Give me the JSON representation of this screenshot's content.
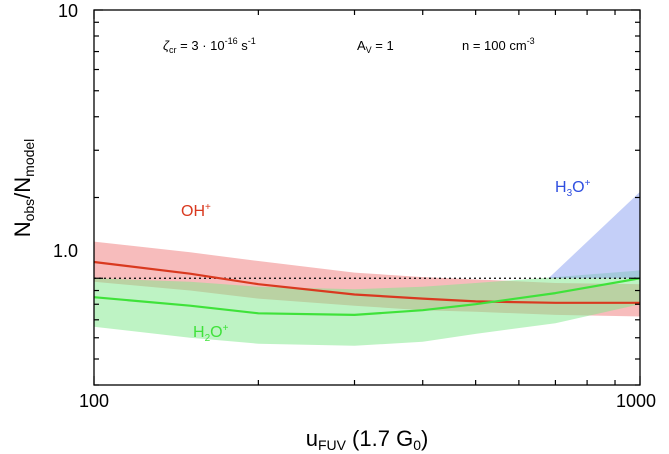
{
  "chart_data": {
    "type": "line",
    "xscale": "log",
    "yscale": "log",
    "xlim": [
      100,
      1000
    ],
    "ylim": [
      0.4,
      10
    ],
    "x_ticks": [
      {
        "value": 100,
        "label": "100"
      },
      {
        "value": 1000,
        "label": "1000"
      }
    ],
    "y_ticks": [
      {
        "value": 1.0,
        "label": "1.0"
      },
      {
        "value": 10,
        "label": "10"
      }
    ],
    "xlabel": {
      "main": "u",
      "sub": "FUV",
      "rest": " (1.7 G",
      "sub2": "0",
      "close": ")"
    },
    "ylabel": {
      "n1": "N",
      "s1": "obs",
      "slash": "/N",
      "s2": "model"
    },
    "reference_line": {
      "y": 1.0,
      "style": "dotted"
    },
    "annotations": {
      "zeta": {
        "sym": "ζ",
        "sub": "cr",
        "eq": " = 3 · 10",
        "sup": "-16",
        "unit": " s",
        "unitsup": "-1"
      },
      "av": {
        "main": "A",
        "sub": "V",
        "eq": " = 1"
      },
      "n": {
        "main": "n = 100 cm",
        "sup": "-3"
      }
    },
    "series": [
      {
        "name": "OH+",
        "label": {
          "main": "OH",
          "sup": "+"
        },
        "color": "#d9391f",
        "band_color": "#f07a7a",
        "x": [
          100,
          150,
          200,
          300,
          400,
          500,
          700,
          1000
        ],
        "y": [
          1.15,
          1.04,
          0.95,
          0.87,
          0.84,
          0.82,
          0.81,
          0.81
        ],
        "y_low": [
          0.97,
          0.9,
          0.84,
          0.79,
          0.76,
          0.75,
          0.73,
          0.72
        ],
        "y_high": [
          1.37,
          1.25,
          1.16,
          1.05,
          1.01,
          0.99,
          0.96,
          0.95
        ]
      },
      {
        "name": "H2O+",
        "label": {
          "main": "H",
          "sub": "2",
          "rest": "O",
          "sup": "+"
        },
        "color": "#3fe23a",
        "band_color": "#7ee88a",
        "x": [
          100,
          150,
          200,
          300,
          400,
          500,
          700,
          1000
        ],
        "y": [
          0.85,
          0.79,
          0.74,
          0.73,
          0.76,
          0.8,
          0.88,
          1.0
        ],
        "y_low": [
          0.66,
          0.6,
          0.57,
          0.56,
          0.58,
          0.62,
          0.68,
          0.8
        ],
        "y_high": [
          1.0,
          0.97,
          0.93,
          0.91,
          0.93,
          0.96,
          1.01,
          1.07
        ]
      },
      {
        "name": "H3O+",
        "label": {
          "main": "H",
          "sub": "3",
          "rest": "O",
          "sup": "+"
        },
        "color": "#2f4fe0",
        "band_color": "#8aa0f2",
        "x": [
          680,
          1000
        ],
        "y_low": [
          1.0,
          1.0
        ],
        "y_high": [
          1.0,
          2.1
        ]
      }
    ]
  }
}
